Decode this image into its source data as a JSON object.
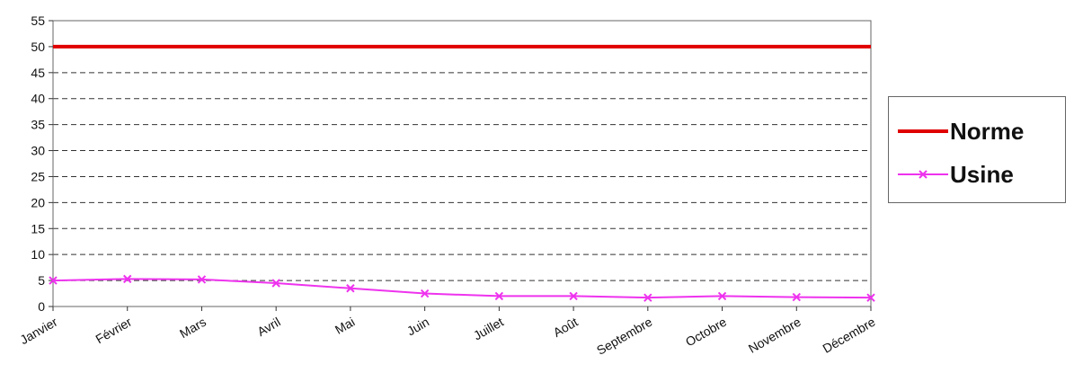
{
  "chart_data": {
    "type": "line",
    "categories": [
      "Janvier",
      "Février",
      "Mars",
      "Avril",
      "Mai",
      "Juin",
      "Juillet",
      "Août",
      "Septembre",
      "Octobre",
      "Novembre",
      "Décembre"
    ],
    "series": [
      {
        "name": "Norme",
        "values": [
          50,
          50,
          50,
          50,
          50,
          50,
          50,
          50,
          50,
          50,
          50,
          50
        ],
        "color": "#e00000",
        "marker": "none"
      },
      {
        "name": "Usine",
        "values": [
          5,
          5.3,
          5.2,
          4.5,
          3.5,
          2.5,
          2,
          2,
          1.7,
          2,
          1.8,
          1.7
        ],
        "color": "#ee33ee",
        "marker": "x"
      }
    ],
    "ylim": [
      0,
      55
    ],
    "yticks": [
      0,
      5,
      10,
      15,
      20,
      25,
      30,
      35,
      40,
      45,
      50,
      55
    ],
    "grid": "horizontal-dashed",
    "legend": "right"
  }
}
